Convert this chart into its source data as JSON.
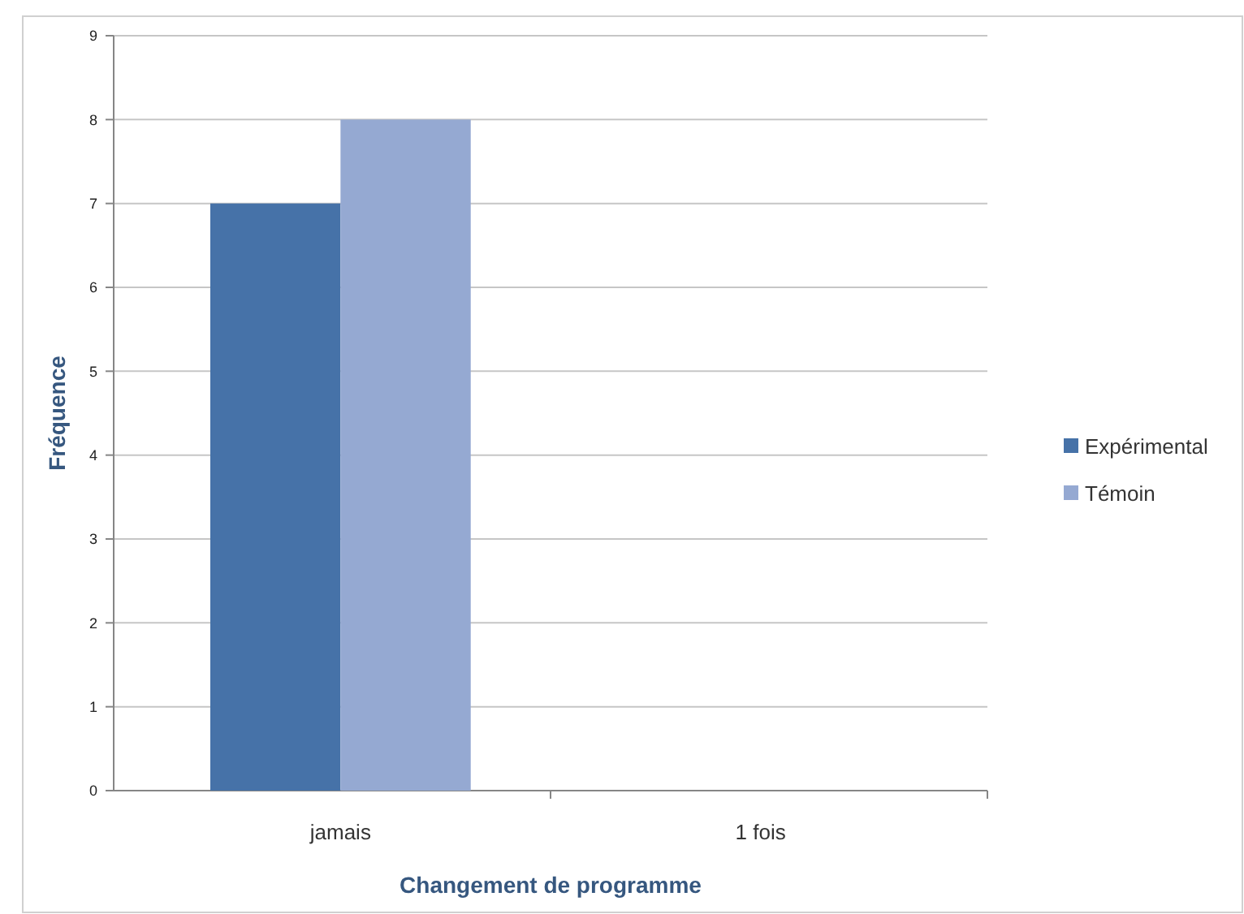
{
  "chart_data": {
    "type": "bar",
    "xlabel": "Changement de programme",
    "ylabel": "Fréquence",
    "categories": [
      "jamais",
      "1 fois"
    ],
    "series": [
      {
        "name": "Expérimental",
        "color": "#4672a8",
        "values": [
          7,
          0
        ]
      },
      {
        "name": "Témoin",
        "color": "#95a9d2",
        "values": [
          8,
          0
        ]
      }
    ],
    "ylim": [
      0,
      9
    ],
    "yticks": [
      0,
      1,
      2,
      3,
      4,
      5,
      6,
      7,
      8,
      9
    ],
    "grid": "y",
    "legend": "right"
  }
}
